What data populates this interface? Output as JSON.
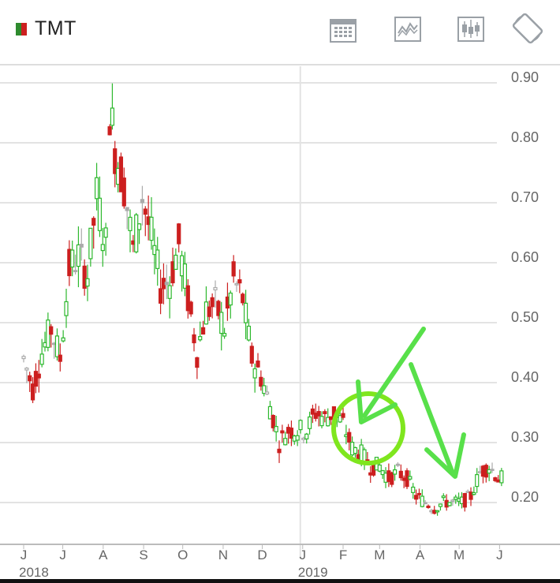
{
  "toolbar": {
    "ticker": "TMT",
    "swatch_colors": [
      "#2e8b2e",
      "#cc1f1f"
    ],
    "buttons": [
      {
        "name": "calendar-icon"
      },
      {
        "name": "compare-chart-icon"
      },
      {
        "name": "candlestick-icon"
      },
      {
        "name": "rotate-screen-icon"
      }
    ]
  },
  "chart_data": {
    "type": "candlestick",
    "ticker": "TMT",
    "y_ticks": [
      "0.90",
      "0.80",
      "0.70",
      "0.60",
      "0.50",
      "0.40",
      "0.30",
      "0.20"
    ],
    "y_tick_values": [
      0.9,
      0.8,
      0.7,
      0.6,
      0.5,
      0.4,
      0.3,
      0.2
    ],
    "ylim": [
      0.1,
      0.91
    ],
    "x_ticks": [
      {
        "label": "J",
        "date": "2018-06-01"
      },
      {
        "label": "J",
        "date": "2018-07-01"
      },
      {
        "label": "A",
        "date": "2018-08-01"
      },
      {
        "label": "S",
        "date": "2018-09-01"
      },
      {
        "label": "O",
        "date": "2018-10-01"
      },
      {
        "label": "N",
        "date": "2018-11-01"
      },
      {
        "label": "D",
        "date": "2018-12-01"
      },
      {
        "label": "J",
        "date": "2019-01-01"
      },
      {
        "label": "F",
        "date": "2019-02-01"
      },
      {
        "label": "M",
        "date": "2019-03-01"
      },
      {
        "label": "A",
        "date": "2019-04-01"
      },
      {
        "label": "M",
        "date": "2019-05-01"
      },
      {
        "label": "J",
        "date": "2019-06-01"
      }
    ],
    "year_labels": [
      {
        "label": "2018",
        "date": "2018-06-01"
      },
      {
        "label": "2019",
        "date": "2019-01-01"
      }
    ],
    "year_divider": "2019-01-01",
    "grid": true,
    "up_color": "#2db82d",
    "down_color": "#cc1f1f",
    "flat_color": "#aaaaaa",
    "closes": [
      [
        "2018-06-01",
        0.43
      ],
      [
        "2018-06-08",
        0.38
      ],
      [
        "2018-06-15",
        0.44
      ],
      [
        "2018-06-22",
        0.48
      ],
      [
        "2018-06-29",
        0.43
      ],
      [
        "2018-07-06",
        0.58
      ],
      [
        "2018-07-13",
        0.6
      ],
      [
        "2018-07-20",
        0.57
      ],
      [
        "2018-07-27",
        0.7
      ],
      [
        "2018-08-03",
        0.62
      ],
      [
        "2018-08-06",
        0.85
      ],
      [
        "2018-08-10",
        0.78
      ],
      [
        "2018-08-17",
        0.72
      ],
      [
        "2018-08-24",
        0.61
      ],
      [
        "2018-08-31",
        0.7
      ],
      [
        "2018-09-07",
        0.63
      ],
      [
        "2018-09-14",
        0.55
      ],
      [
        "2018-09-21",
        0.56
      ],
      [
        "2018-09-28",
        0.62
      ],
      [
        "2018-10-05",
        0.53
      ],
      [
        "2018-10-12",
        0.44
      ],
      [
        "2018-10-19",
        0.51
      ],
      [
        "2018-10-26",
        0.52
      ],
      [
        "2018-11-02",
        0.48
      ],
      [
        "2018-11-09",
        0.56
      ],
      [
        "2018-11-16",
        0.53
      ],
      [
        "2018-11-23",
        0.43
      ],
      [
        "2018-11-30",
        0.4
      ],
      [
        "2018-12-07",
        0.35
      ],
      [
        "2018-12-14",
        0.29
      ],
      [
        "2018-12-21",
        0.31
      ],
      [
        "2019-01-04",
        0.31
      ],
      [
        "2019-01-11",
        0.34
      ],
      [
        "2019-01-18",
        0.33
      ],
      [
        "2019-01-25",
        0.34
      ],
      [
        "2019-02-01",
        0.32
      ],
      [
        "2019-02-08",
        0.28
      ],
      [
        "2019-02-15",
        0.27
      ],
      [
        "2019-02-22",
        0.25
      ],
      [
        "2019-03-01",
        0.25
      ],
      [
        "2019-03-08",
        0.23
      ],
      [
        "2019-03-15",
        0.24
      ],
      [
        "2019-03-22",
        0.23
      ],
      [
        "2019-03-29",
        0.2
      ],
      [
        "2019-04-05",
        0.19
      ],
      [
        "2019-04-12",
        0.18
      ],
      [
        "2019-04-19",
        0.19
      ],
      [
        "2019-04-26",
        0.19
      ],
      [
        "2019-05-03",
        0.19
      ],
      [
        "2019-05-10",
        0.2
      ],
      [
        "2019-05-17",
        0.24
      ],
      [
        "2019-05-24",
        0.25
      ],
      [
        "2019-05-31",
        0.23
      ],
      [
        "2019-06-05",
        0.23
      ]
    ]
  }
}
